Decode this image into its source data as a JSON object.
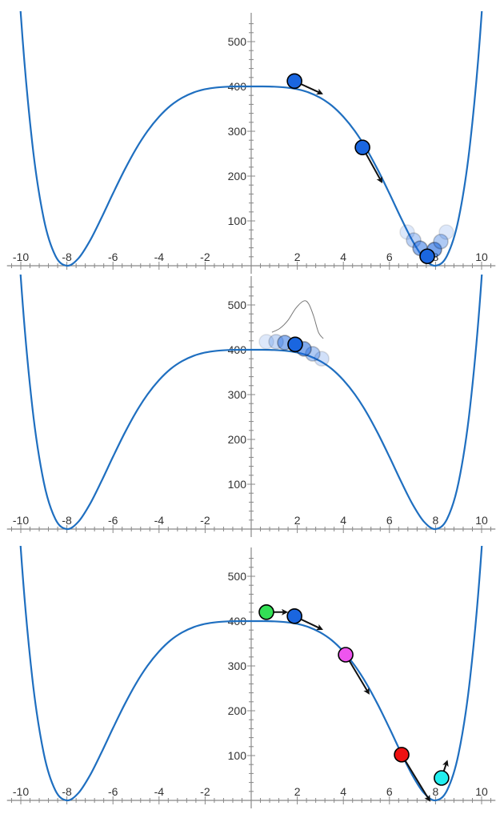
{
  "chart_data": [
    {
      "type": "line",
      "xlim": [
        -10.3,
        10.3
      ],
      "ylim": [
        0,
        555
      ],
      "x_ticks": [
        -10,
        -8,
        -6,
        -4,
        -2,
        2,
        4,
        6,
        8,
        10
      ],
      "y_ticks": [
        100,
        200,
        300,
        400,
        500
      ],
      "grid": false,
      "colors": {
        "curve": "#1f6fc0",
        "ball": "#1a66e0",
        "arrow": "#111111"
      },
      "curve": {
        "x": [
          -10.5,
          -10,
          -9.5,
          -9,
          -8.5,
          -8,
          -7.5,
          -7,
          -6.5,
          -6,
          -5.5,
          -5,
          -4.5,
          -4,
          -3.5,
          -3,
          -2.5,
          -2,
          -1.5,
          -1,
          -0.5,
          0,
          0.5,
          1,
          1.5,
          2,
          2.5,
          3,
          3.5,
          4,
          4.5,
          5,
          5.5,
          6,
          6.5,
          7,
          7.5,
          8,
          8.5,
          9,
          9.5,
          10,
          10.5
        ],
        "y": [
          1011,
          560.7,
          272.3,
          104,
          22.4,
          0,
          16.4,
          55.7,
          106.7,
          161.1,
          213.5,
          260.7,
          300.4,
          332.3,
          357.1,
          374.6,
          386.5,
          393.8,
          397.7,
          399.4,
          400,
          400,
          400,
          399.4,
          397.7,
          393.8,
          386.5,
          374.6,
          357.1,
          332.3,
          300.4,
          260.7,
          213.5,
          161.1,
          106.7,
          55.7,
          16.4,
          0,
          22.4,
          104,
          272.3,
          560.7,
          1011
        ]
      },
      "balls": [
        {
          "x": 1.88,
          "y": 412,
          "color": "#1a66e0",
          "opacity": 1,
          "arrow_to": [
            3.06,
            384
          ]
        },
        {
          "x": 4.83,
          "y": 264,
          "color": "#1a66e0",
          "opacity": 1,
          "arrow_to": [
            5.66,
            187
          ]
        },
        {
          "x": 6.77,
          "y": 75,
          "color": "#1a66e0",
          "opacity": 0.15
        },
        {
          "x": 7.05,
          "y": 57,
          "color": "#1a66e0",
          "opacity": 0.3
        },
        {
          "x": 7.33,
          "y": 39,
          "color": "#1a66e0",
          "opacity": 0.5
        },
        {
          "x": 7.95,
          "y": 36,
          "color": "#1a66e0",
          "opacity": 0.6
        },
        {
          "x": 8.23,
          "y": 54,
          "color": "#1a66e0",
          "opacity": 0.35
        },
        {
          "x": 8.47,
          "y": 75,
          "color": "#1a66e0",
          "opacity": 0.15
        },
        {
          "x": 7.64,
          "y": 21,
          "color": "#1a66e0",
          "opacity": 1
        }
      ]
    },
    {
      "type": "line",
      "xlim": [
        -10.3,
        10.3
      ],
      "ylim": [
        0,
        555
      ],
      "x_ticks": [
        -10,
        -8,
        -6,
        -4,
        -2,
        2,
        4,
        6,
        8,
        10
      ],
      "y_ticks": [
        100,
        200,
        300,
        400,
        500
      ],
      "grid": false,
      "distribution": {
        "x": [
          0.9,
          1.25,
          1.6,
          1.94,
          2.29,
          2.5,
          2.71,
          2.92,
          3.13
        ],
        "y": [
          439,
          448,
          466,
          493,
          509,
          502,
          475,
          439,
          425
        ],
        "color": "#777777"
      },
      "balls": [
        {
          "x": 0.66,
          "y": 418,
          "color": "#1a66e0",
          "opacity": 0.15
        },
        {
          "x": 1.08,
          "y": 418,
          "color": "#1a66e0",
          "opacity": 0.25
        },
        {
          "x": 3.06,
          "y": 380,
          "color": "#1a66e0",
          "opacity": 0.2
        },
        {
          "x": 2.67,
          "y": 391,
          "color": "#1a66e0",
          "opacity": 0.35
        },
        {
          "x": 2.29,
          "y": 402,
          "color": "#1a66e0",
          "opacity": 0.55
        },
        {
          "x": 1.46,
          "y": 416,
          "color": "#1a66e0",
          "opacity": 0.5
        },
        {
          "x": 1.91,
          "y": 412,
          "color": "#1a66e0",
          "opacity": 1
        }
      ]
    },
    {
      "type": "line",
      "xlim": [
        -10.3,
        10.3
      ],
      "ylim": [
        0,
        555
      ],
      "x_ticks": [
        -10,
        -8,
        -6,
        -4,
        -2,
        2,
        4,
        6,
        8,
        10
      ],
      "y_ticks": [
        100,
        200,
        300,
        400,
        500
      ],
      "grid": false,
      "balls": [
        {
          "x": 0.66,
          "y": 420,
          "color": "#33e055",
          "opacity": 1,
          "arrow_to": [
            1.53,
            420
          ]
        },
        {
          "x": 1.88,
          "y": 411,
          "color": "#1a66e0",
          "opacity": 1,
          "arrow_to": [
            3.06,
            382
          ]
        },
        {
          "x": 4.1,
          "y": 325,
          "color": "#ee55ee",
          "opacity": 1,
          "arrow_to": [
            5.1,
            239
          ]
        },
        {
          "x": 6.53,
          "y": 102,
          "color": "#ee1111",
          "opacity": 1,
          "arrow_to": [
            7.74,
            0
          ]
        },
        {
          "x": 8.26,
          "y": 50,
          "color": "#22eeee",
          "opacity": 1,
          "arrow_to": [
            8.5,
            87
          ]
        }
      ]
    }
  ]
}
